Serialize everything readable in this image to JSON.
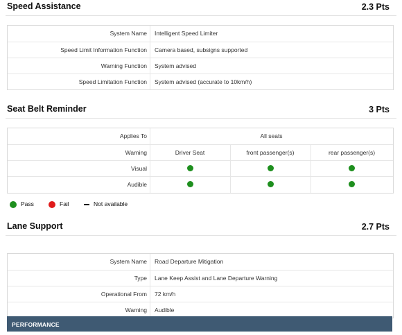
{
  "speed_assistance": {
    "title": "Speed Assistance",
    "points": "2.3 Pts",
    "rows": [
      {
        "label": "System Name",
        "value": "Intelligent Speed Limiter"
      },
      {
        "label": "Speed Limit Information Function",
        "value": "Camera based, subsigns supported"
      },
      {
        "label": "Warning Function",
        "value": "System advised"
      },
      {
        "label": "Speed Limitation Function",
        "value": "System advised (accurate to 10km/h)"
      }
    ]
  },
  "seat_belt": {
    "title": "Seat Belt Reminder",
    "points": "3 Pts",
    "applies_to_label": "Applies To",
    "applies_to_value": "All seats",
    "warning_label": "Warning",
    "columns": [
      "Driver Seat",
      "front passenger(s)",
      "rear passenger(s)"
    ],
    "visual_label": "Visual",
    "audible_label": "Audible",
    "visual_status": [
      "pass",
      "pass",
      "pass"
    ],
    "audible_status": [
      "pass",
      "pass",
      "pass"
    ]
  },
  "legend": {
    "pass": "Pass",
    "fail": "Fail",
    "not_available": "Not available"
  },
  "lane_support": {
    "title": "Lane Support",
    "points": "2.7 Pts",
    "rows": [
      {
        "label": "System Name",
        "value": "Road Departure Mitigation"
      },
      {
        "label": "Type",
        "value": "Lane Keep Assist and Lane Departure Warning"
      },
      {
        "label": "Operational From",
        "value": "72 km/h"
      },
      {
        "label": "Warning",
        "value": "Audible"
      }
    ]
  },
  "performance": {
    "label": "PERFORMANCE"
  },
  "colors": {
    "pass": "#1e8f1e",
    "fail": "#e01b1b",
    "performance_bar": "#3f5a73"
  }
}
